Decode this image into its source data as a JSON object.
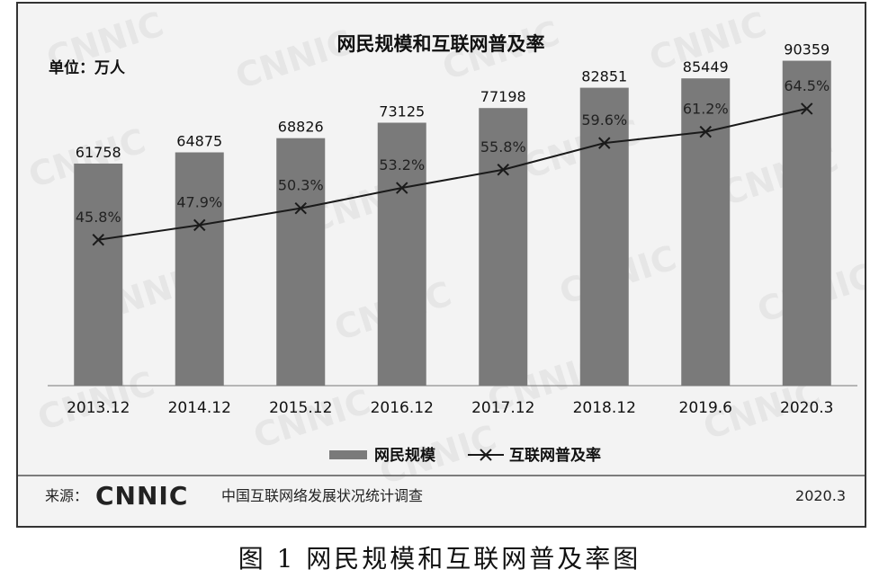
{
  "chart_data": {
    "type": "bar+line",
    "title": "网民规模和互联网普及率",
    "unit_label": "单位：万人",
    "categories": [
      "2013.12",
      "2014.12",
      "2015.12",
      "2016.12",
      "2017.12",
      "2018.12",
      "2019.6",
      "2020.3"
    ],
    "series": [
      {
        "name": "网民规模",
        "type": "bar",
        "values": [
          61758,
          64875,
          68826,
          73125,
          77198,
          82851,
          85449,
          90359
        ]
      },
      {
        "name": "互联网普及率",
        "type": "line",
        "values": [
          45.8,
          47.9,
          50.3,
          53.2,
          55.8,
          59.6,
          61.2,
          64.5
        ],
        "value_labels": [
          "45.8%",
          "47.9%",
          "50.3%",
          "53.2%",
          "55.8%",
          "59.6%",
          "61.2%",
          "64.5%"
        ]
      }
    ],
    "legend_position": "bottom",
    "grid": false,
    "bar_color": "#7a7a7a",
    "line_color": "#1a1a1a"
  },
  "footer": {
    "source_label": "来源：",
    "logo_text": "CNNIC",
    "org_name": "中国互联网络发展状况统计调查",
    "date": "2020.3"
  },
  "watermark": "CNNIC",
  "caption": "图 1 网民规模和互联网普及率图"
}
